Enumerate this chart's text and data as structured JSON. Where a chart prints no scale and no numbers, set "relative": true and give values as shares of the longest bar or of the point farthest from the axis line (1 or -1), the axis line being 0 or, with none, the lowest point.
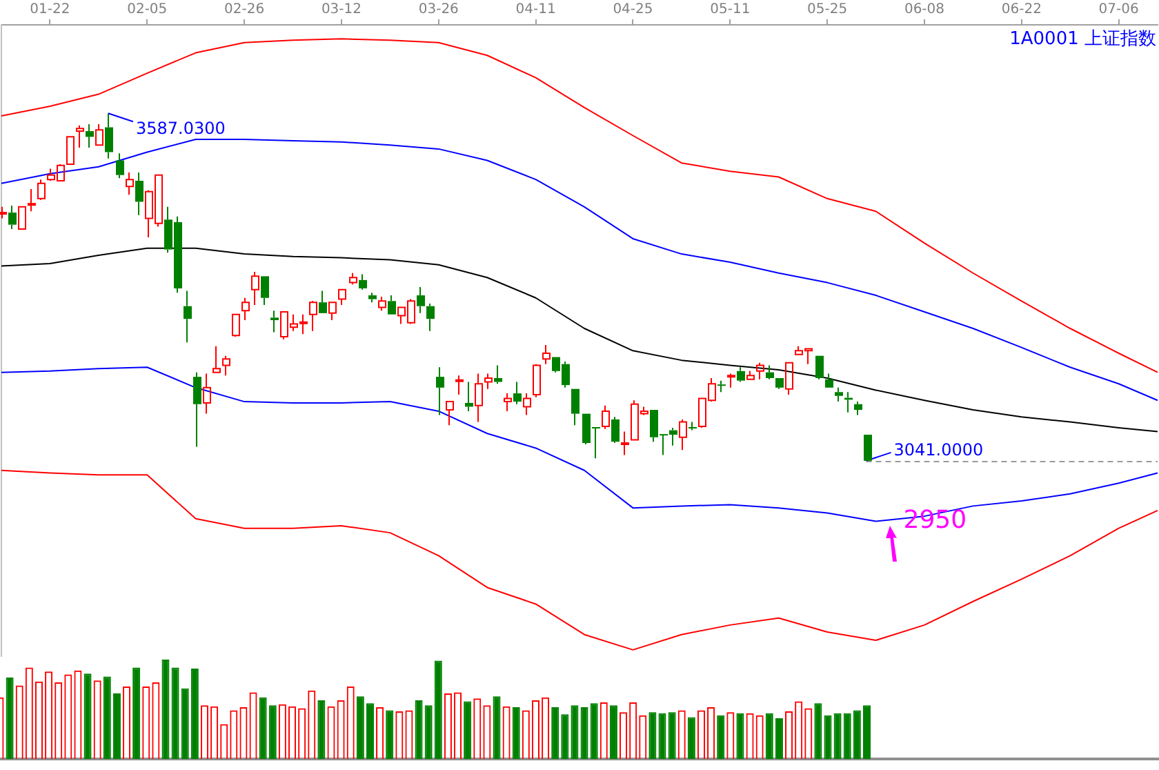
{
  "chart_data": [
    {
      "type": "candlestick",
      "title": "1A0001 上证指数",
      "tick_labels": "x",
      "categories": [
        null,
        null,
        null,
        null,
        null,
        "01-22",
        null,
        null,
        null,
        null,
        null,
        null,
        null,
        null,
        null,
        "02-05",
        null,
        null,
        null,
        null,
        null,
        null,
        null,
        null,
        null,
        "02-26",
        null,
        null,
        null,
        null,
        null,
        null,
        null,
        null,
        null,
        "03-12",
        null,
        null,
        null,
        null,
        null,
        null,
        null,
        null,
        null,
        "03-26",
        null,
        null,
        null,
        null,
        null,
        null,
        null,
        null,
        null,
        "04-11",
        null,
        null,
        null,
        null,
        null,
        null,
        null,
        null,
        null,
        "04-25",
        null,
        null,
        null,
        null,
        null,
        null,
        null,
        null,
        null,
        "05-11",
        null,
        null,
        null,
        null,
        null,
        null,
        null,
        null,
        null,
        "05-25",
        null,
        null,
        null,
        null,
        null,
        null,
        null,
        null,
        null,
        "06-08",
        null,
        null,
        null,
        null,
        null,
        null,
        null,
        null,
        null,
        "06-22",
        null,
        null,
        null,
        null,
        null,
        null,
        null,
        null,
        null,
        "07-06",
        null,
        null,
        null,
        null
      ],
      "ylim": [
        2733,
        3726
      ],
      "ohlc": [
        [
          3429,
          3440,
          3422,
          3431
        ],
        [
          3431,
          3442,
          3405,
          3412
        ],
        [
          3405,
          3440,
          3405,
          3440
        ],
        [
          3443,
          3468,
          3433,
          3445
        ],
        [
          3453,
          3483,
          3451,
          3477
        ],
        [
          3483,
          3500,
          3481,
          3490
        ],
        [
          3481,
          3507,
          3481,
          3505
        ],
        [
          3507,
          3550,
          3507,
          3550
        ],
        [
          3559,
          3568,
          3533,
          3563
        ],
        [
          3559,
          3570,
          3533,
          3550
        ],
        [
          3537,
          3570,
          3537,
          3561
        ],
        [
          3565,
          3587.03,
          3516,
          3526
        ],
        [
          3513,
          3524,
          3485,
          3490
        ],
        [
          3472,
          3494,
          3459,
          3483
        ],
        [
          3481,
          3494,
          3427,
          3448
        ],
        [
          3422,
          3466,
          3392,
          3464
        ],
        [
          3414,
          3490,
          3409,
          3490
        ],
        [
          3420,
          3440,
          3368,
          3373
        ],
        [
          3416,
          3425,
          3305,
          3312
        ],
        [
          3284,
          3308,
          3227,
          3264
        ],
        [
          3173,
          3180,
          3063,
          3130
        ],
        [
          3132,
          3178,
          3115,
          3156
        ],
        [
          3180,
          3221,
          3180,
          3186
        ],
        [
          3191,
          3206,
          3175,
          3201
        ],
        [
          3238,
          3271,
          3236,
          3271
        ],
        [
          3277,
          3297,
          3262,
          3290
        ],
        [
          3310,
          3338,
          3286,
          3331
        ],
        [
          3331,
          3331,
          3286,
          3297
        ],
        [
          3266,
          3277,
          3243,
          3262
        ],
        [
          3236,
          3275,
          3232,
          3275
        ],
        [
          3251,
          3271,
          3245,
          3256
        ],
        [
          3257,
          3271,
          3240,
          3259
        ],
        [
          3271,
          3292,
          3245,
          3290
        ],
        [
          3290,
          3308,
          3273,
          3273
        ],
        [
          3273,
          3290,
          3262,
          3290
        ],
        [
          3295,
          3310,
          3286,
          3310
        ],
        [
          3321,
          3336,
          3318,
          3329
        ],
        [
          3325,
          3334,
          3310,
          3312
        ],
        [
          3301,
          3305,
          3290,
          3295
        ],
        [
          3282,
          3299,
          3277,
          3292
        ],
        [
          3292,
          3301,
          3271,
          3271
        ],
        [
          3269,
          3282,
          3256,
          3282
        ],
        [
          3258,
          3295,
          3256,
          3292
        ],
        [
          3301,
          3314,
          3273,
          3284
        ],
        [
          3284,
          3288,
          3245,
          3264
        ],
        [
          3173,
          3188,
          3113,
          3156
        ],
        [
          3121,
          3134,
          3097,
          3134
        ],
        [
          3166,
          3175,
          3145,
          3168
        ],
        [
          3132,
          3165,
          3119,
          3126
        ],
        [
          3128,
          3178,
          3102,
          3162
        ],
        [
          3165,
          3178,
          3154,
          3171
        ],
        [
          3171,
          3191,
          3162,
          3165
        ],
        [
          3134,
          3147,
          3119,
          3139
        ],
        [
          3147,
          3165,
          3130,
          3134
        ],
        [
          3126,
          3147,
          3113,
          3139
        ],
        [
          3145,
          3193,
          3141,
          3191
        ],
        [
          3201,
          3223,
          3193,
          3210
        ],
        [
          3204,
          3204,
          3180,
          3182
        ],
        [
          3193,
          3197,
          3156,
          3160
        ],
        [
          3154,
          3154,
          3097,
          3115
        ],
        [
          3115,
          3115,
          3067,
          3069
        ],
        [
          3094,
          3094,
          3045,
          3092
        ],
        [
          3095,
          3128,
          3091,
          3119
        ],
        [
          3106,
          3110,
          3069,
          3071
        ],
        [
          3067,
          3087,
          3050,
          3069
        ],
        [
          3074,
          3136,
          3074,
          3130
        ],
        [
          3115,
          3126,
          3113,
          3119
        ],
        [
          3121,
          3121,
          3071,
          3078
        ],
        [
          3083,
          3083,
          3050,
          3081
        ],
        [
          3089,
          3093,
          3065,
          3082
        ],
        [
          3078,
          3106,
          3058,
          3102
        ],
        [
          3094,
          3102,
          3089,
          3092
        ],
        [
          3095,
          3139,
          3093,
          3139
        ],
        [
          3136,
          3171,
          3134,
          3162
        ],
        [
          3161,
          3167,
          3149,
          3159
        ],
        [
          3173,
          3178,
          3156,
          3175
        ],
        [
          3182,
          3188,
          3165,
          3167
        ],
        [
          3169,
          3182,
          3169,
          3175
        ],
        [
          3182,
          3195,
          3169,
          3191
        ],
        [
          3180,
          3191,
          3169,
          3171
        ],
        [
          3171,
          3171,
          3154,
          3156
        ],
        [
          3154,
          3195,
          3145,
          3195
        ],
        [
          3208,
          3221,
          3208,
          3214
        ],
        [
          3214,
          3217,
          3193,
          3217
        ],
        [
          3206,
          3206,
          3169,
          3171
        ],
        [
          3169,
          3178,
          3156,
          3156
        ],
        [
          3149,
          3156,
          3134,
          3143
        ],
        [
          3140,
          3149,
          3117,
          3137
        ],
        [
          3130,
          3134,
          3113,
          3121
        ],
        [
          3082,
          3082,
          3041,
          3041
        ],
        null,
        null,
        null,
        null,
        null,
        null,
        null,
        null,
        null,
        null,
        null,
        null,
        null,
        null,
        null,
        null,
        null,
        null,
        null,
        null,
        null,
        null,
        null,
        null,
        null,
        null,
        null,
        null,
        null,
        null
      ],
      "series": [
        {
          "type": "line",
          "color": "#ff0000",
          "values": [
            3583,
            null,
            null,
            null,
            null,
            3598,
            null,
            null,
            null,
            null,
            3617,
            null,
            null,
            null,
            null,
            3650,
            null,
            null,
            null,
            null,
            3682,
            null,
            null,
            null,
            null,
            3698,
            null,
            null,
            null,
            null,
            3702,
            null,
            null,
            null,
            null,
            3704,
            null,
            null,
            null,
            null,
            3702,
            null,
            null,
            null,
            null,
            3698,
            null,
            null,
            null,
            null,
            3678,
            null,
            null,
            null,
            null,
            3643,
            null,
            null,
            null,
            null,
            3596,
            null,
            null,
            null,
            null,
            3552,
            null,
            null,
            null,
            null,
            3509,
            null,
            null,
            null,
            null,
            3496,
            null,
            null,
            null,
            null,
            3487,
            null,
            null,
            null,
            null,
            3453,
            null,
            null,
            null,
            null,
            3433,
            null,
            null,
            null,
            null,
            3383,
            null,
            null,
            null,
            null,
            3336,
            null,
            null,
            null,
            null,
            3292,
            null,
            null,
            null,
            null,
            3249,
            null,
            null,
            null,
            null,
            3210,
            null,
            null,
            null,
            3180
          ]
        },
        {
          "type": "line",
          "color": "#0000ff",
          "values": [
            3477,
            null,
            null,
            null,
            null,
            3492,
            null,
            null,
            null,
            null,
            3503,
            null,
            null,
            null,
            null,
            3526,
            null,
            null,
            null,
            null,
            3546,
            null,
            null,
            null,
            null,
            3546,
            null,
            null,
            null,
            null,
            3544,
            null,
            null,
            null,
            null,
            3542,
            null,
            null,
            null,
            null,
            3537,
            null,
            null,
            null,
            null,
            3531,
            null,
            null,
            null,
            null,
            3513,
            null,
            null,
            null,
            null,
            3483,
            null,
            null,
            null,
            null,
            3440,
            null,
            null,
            null,
            null,
            3390,
            null,
            null,
            null,
            null,
            3366,
            null,
            null,
            null,
            null,
            3353,
            null,
            null,
            null,
            null,
            3336,
            null,
            null,
            null,
            null,
            3321,
            null,
            null,
            null,
            null,
            3301,
            null,
            null,
            null,
            null,
            3275,
            null,
            null,
            null,
            null,
            3249,
            null,
            null,
            null,
            null,
            3219,
            null,
            null,
            null,
            null,
            3188,
            null,
            null,
            null,
            null,
            3162,
            null,
            null,
            null,
            3136
          ]
        },
        {
          "type": "line",
          "color": "#000000",
          "values": [
            3347,
            null,
            null,
            null,
            null,
            3351,
            null,
            null,
            null,
            null,
            3364,
            null,
            null,
            null,
            null,
            3375,
            null,
            null,
            null,
            null,
            3375,
            null,
            null,
            null,
            null,
            3366,
            null,
            null,
            null,
            null,
            3362,
            null,
            null,
            null,
            null,
            3360,
            null,
            null,
            null,
            null,
            3357,
            null,
            null,
            null,
            null,
            3349,
            null,
            null,
            null,
            null,
            3329,
            null,
            null,
            null,
            null,
            3297,
            null,
            null,
            null,
            null,
            3249,
            null,
            null,
            null,
            null,
            3214,
            null,
            null,
            null,
            null,
            3199,
            null,
            null,
            null,
            null,
            3191,
            null,
            null,
            null,
            null,
            3184,
            null,
            null,
            null,
            null,
            3171,
            null,
            null,
            null,
            null,
            3152,
            null,
            null,
            null,
            null,
            3136,
            null,
            null,
            null,
            null,
            3121,
            null,
            null,
            null,
            null,
            3110,
            null,
            null,
            null,
            null,
            3102,
            null,
            null,
            null,
            null,
            3093,
            null,
            null,
            null,
            3087
          ]
        },
        {
          "type": "line",
          "color": "#0000ff",
          "values": [
            3180,
            null,
            null,
            null,
            null,
            3182,
            null,
            null,
            null,
            null,
            3186,
            null,
            null,
            null,
            null,
            3188,
            null,
            null,
            null,
            null,
            3156,
            null,
            null,
            null,
            null,
            3134,
            null,
            null,
            null,
            null,
            3132,
            null,
            null,
            null,
            null,
            3132,
            null,
            null,
            null,
            null,
            3134,
            null,
            null,
            null,
            null,
            3119,
            null,
            null,
            null,
            null,
            3084,
            null,
            null,
            null,
            null,
            3061,
            null,
            null,
            null,
            null,
            3026,
            null,
            null,
            null,
            null,
            2967,
            null,
            null,
            null,
            null,
            2970,
            null,
            null,
            null,
            null,
            2972,
            null,
            null,
            null,
            null,
            2967,
            null,
            null,
            null,
            null,
            2959,
            null,
            null,
            null,
            null,
            2946,
            null,
            null,
            null,
            null,
            2954,
            null,
            null,
            null,
            null,
            2970,
            null,
            null,
            null,
            null,
            2978,
            null,
            null,
            null,
            null,
            2989,
            null,
            null,
            null,
            null,
            3006,
            null,
            null,
            null,
            3022
          ]
        },
        {
          "type": "line",
          "color": "#ff0000",
          "values": [
            3026,
            null,
            null,
            null,
            null,
            3022,
            null,
            null,
            null,
            null,
            3019,
            null,
            null,
            null,
            null,
            3019,
            null,
            null,
            null,
            null,
            2950,
            null,
            null,
            null,
            null,
            2935,
            null,
            null,
            null,
            null,
            2935,
            null,
            null,
            null,
            null,
            2939,
            null,
            null,
            null,
            null,
            2928,
            null,
            null,
            null,
            null,
            2892,
            null,
            null,
            null,
            null,
            2842,
            null,
            null,
            null,
            null,
            2816,
            null,
            null,
            null,
            null,
            2768,
            null,
            null,
            null,
            null,
            2744,
            null,
            null,
            null,
            null,
            2768,
            null,
            null,
            null,
            null,
            2783,
            null,
            null,
            null,
            null,
            2794,
            null,
            null,
            null,
            null,
            2772,
            null,
            null,
            null,
            null,
            2759,
            null,
            null,
            null,
            null,
            2783,
            null,
            null,
            null,
            null,
            2820,
            null,
            null,
            null,
            null,
            2855,
            null,
            null,
            null,
            null,
            2892,
            null,
            null,
            null,
            null,
            2935,
            null,
            null,
            null,
            2963
          ]
        }
      ],
      "ref_lines": [
        {
          "axis": "y",
          "value": 3041,
          "label": "3041.0000",
          "line_style": "dashed"
        }
      ],
      "annotations": [
        "3587.0300",
        {
          "text": "2950",
          "y": 2950
        }
      ]
    },
    {
      "type": "bar",
      "relative": true,
      "tick_labels": false,
      "categories": [
        null,
        null,
        null,
        null,
        null,
        null,
        null,
        null,
        null,
        null,
        null,
        null,
        null,
        null,
        null,
        null,
        null,
        null,
        null,
        null,
        null,
        null,
        null,
        null,
        null,
        null,
        null,
        null,
        null,
        null,
        null,
        null,
        null,
        null,
        null,
        null,
        null,
        null,
        null,
        null,
        null,
        null,
        null,
        null,
        null,
        null,
        null,
        null,
        null,
        null,
        null,
        null,
        null,
        null,
        null,
        null,
        null,
        null,
        null,
        null,
        null,
        null,
        null,
        null,
        null,
        null,
        null,
        null,
        null,
        null,
        null,
        null,
        null,
        null,
        null,
        null,
        null,
        null,
        null,
        null,
        null,
        null,
        null,
        null,
        null,
        null,
        null,
        null,
        null,
        null,
        null,
        null,
        null,
        null,
        null,
        null,
        null,
        null,
        null,
        null,
        null,
        null,
        null,
        null,
        null,
        null,
        null,
        null,
        null,
        null,
        null,
        null,
        null,
        null,
        null,
        null,
        null,
        null,
        null,
        null
      ],
      "values": [
        0.62,
        0.82,
        0.74,
        0.92,
        0.78,
        0.88,
        0.77,
        0.85,
        0.89,
        0.86,
        0.79,
        0.83,
        0.66,
        0.73,
        0.92,
        0.73,
        0.77,
        1,
        0.92,
        0.71,
        0.91,
        0.54,
        0.53,
        0.35,
        0.49,
        0.52,
        0.67,
        0.62,
        0.54,
        0.55,
        0.53,
        0.51,
        0.69,
        0.59,
        0.53,
        0.59,
        0.73,
        0.63,
        0.56,
        0.52,
        0.49,
        0.48,
        0.49,
        0.59,
        0.54,
        0.99,
        0.66,
        0.67,
        0.58,
        0.61,
        0.54,
        0.63,
        0.53,
        0.52,
        0.49,
        0.59,
        0.62,
        0.52,
        0.45,
        0.54,
        0.52,
        0.56,
        0.57,
        0.54,
        0.47,
        0.57,
        0.44,
        0.47,
        0.46,
        0.47,
        0.49,
        0.42,
        0.49,
        0.52,
        0.44,
        0.47,
        0.46,
        0.46,
        0.44,
        0.46,
        0.41,
        0.48,
        0.58,
        0.51,
        0.56,
        0.44,
        0.46,
        0.46,
        0.49,
        0.54,
        null,
        null,
        null,
        null,
        null,
        null,
        null,
        null,
        null,
        null,
        null,
        null,
        null,
        null,
        null,
        null,
        null,
        null,
        null,
        null,
        null,
        null,
        null,
        null,
        null,
        null,
        null,
        null,
        null,
        null
      ],
      "colors": [
        "#ff0000",
        "#008000",
        "#ff0000",
        "#ff0000",
        "#ff0000",
        "#ff0000",
        "#ff0000",
        "#ff0000",
        "#ff0000",
        "#008000",
        "#ff0000",
        "#008000",
        "#008000",
        "#ff0000",
        "#008000",
        "#ff0000",
        "#ff0000",
        "#008000",
        "#008000",
        "#008000",
        "#008000",
        "#ff0000",
        "#ff0000",
        "#ff0000",
        "#ff0000",
        "#ff0000",
        "#ff0000",
        "#008000",
        "#008000",
        "#ff0000",
        "#ff0000",
        "#ff0000",
        "#ff0000",
        "#008000",
        "#ff0000",
        "#ff0000",
        "#ff0000",
        "#008000",
        "#008000",
        "#ff0000",
        "#008000",
        "#ff0000",
        "#ff0000",
        "#008000",
        "#008000",
        "#008000",
        "#ff0000",
        "#ff0000",
        "#008000",
        "#ff0000",
        "#ff0000",
        "#008000",
        "#ff0000",
        "#008000",
        "#ff0000",
        "#ff0000",
        "#ff0000",
        "#008000",
        "#008000",
        "#008000",
        "#008000",
        "#008000",
        "#ff0000",
        "#008000",
        "#ff0000",
        "#ff0000",
        "#ff0000",
        "#008000",
        "#008000",
        "#008000",
        "#ff0000",
        "#008000",
        "#ff0000",
        "#ff0000",
        "#008000",
        "#ff0000",
        "#008000",
        "#ff0000",
        "#ff0000",
        "#008000",
        "#008000",
        "#ff0000",
        "#ff0000",
        "#ff0000",
        "#008000",
        "#008000",
        "#008000",
        "#008000",
        "#008000",
        "#008000",
        null,
        null,
        null,
        null,
        null,
        null,
        null,
        null,
        null,
        null,
        null,
        null,
        null,
        null,
        null,
        null,
        null,
        null,
        null,
        null,
        null,
        null,
        null,
        null,
        null,
        null,
        null,
        null,
        null,
        null
      ]
    }
  ]
}
